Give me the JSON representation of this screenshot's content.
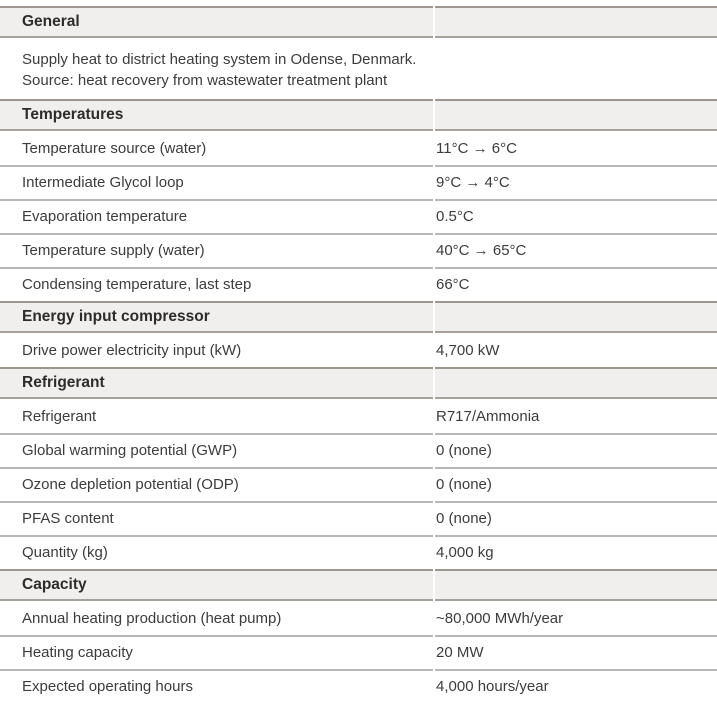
{
  "colors": {
    "band_bg": "#f0efee",
    "band_border": "#9d968f",
    "band_border_b": "#a7a19b",
    "row_border": "#bab8b4",
    "text": "#3d3c3b",
    "heading_text": "#2d2c2b"
  },
  "table": {
    "sections": [
      {
        "title": "General",
        "description": [
          "Supply heat to district heating system in Odense, Denmark.",
          "Source: heat recovery from wastewater treatment plant"
        ],
        "rows": []
      },
      {
        "title": "Temperatures",
        "rows": [
          {
            "label": "Temperature source (water)",
            "value": "11°C → 6°C"
          },
          {
            "label": "Intermediate Glycol loop",
            "value": "9°C → 4°C"
          },
          {
            "label": "Evaporation temperature",
            "value": "0.5°C"
          },
          {
            "label": "Temperature supply (water)",
            "value": "40°C → 65°C"
          },
          {
            "label": "Condensing temperature, last step",
            "value": "66°C"
          }
        ]
      },
      {
        "title": "Energy input compressor",
        "rows": [
          {
            "label": "Drive power electricity input (kW)",
            "value": "4,700 kW"
          }
        ]
      },
      {
        "title": "Refrigerant",
        "rows": [
          {
            "label": "Refrigerant",
            "value": "R717/Ammonia"
          },
          {
            "label": "Global warming potential (GWP)",
            "value": "0 (none)"
          },
          {
            "label": "Ozone depletion potential (ODP)",
            "value": "0 (none)"
          },
          {
            "label": "PFAS content",
            "value": "0 (none)"
          },
          {
            "label": "Quantity (kg)",
            "value": "4,000 kg"
          }
        ]
      },
      {
        "title": "Capacity",
        "rows": [
          {
            "label": "Annual heating production (heat pump)",
            "value": "~80,000 MWh/year"
          },
          {
            "label": "Heating capacity",
            "value": "20 MW"
          },
          {
            "label": "Expected operating hours",
            "value": "4,000 hours/year"
          }
        ]
      }
    ]
  }
}
